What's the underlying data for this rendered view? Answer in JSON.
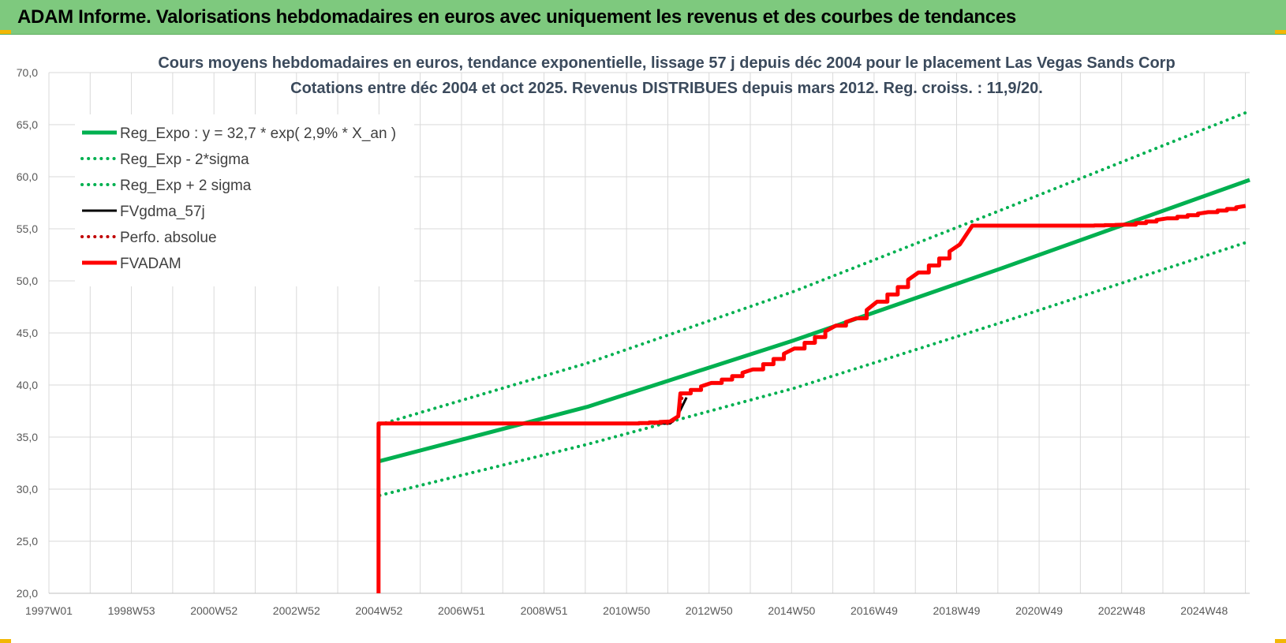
{
  "header": {
    "title": "ADAM Informe. Valorisations hebdomadaires en euros avec uniquement les revenus et des courbes de tendances"
  },
  "colors": {
    "banner": "#7ec97e",
    "green": "#00b050",
    "red": "#ff0000",
    "black": "#000000",
    "grid": "#d9d9d9"
  },
  "chart_data": {
    "type": "line",
    "title_lines": [
      "Cours moyens hebdomadaires en euros, tendance exponentielle, lissage 57 j depuis déc 2004 pour le placement Las Vegas Sands Corp",
      "Cotations entre déc 2004 et oct 2025. Revenus DISTRIBUES depuis mars 2012. Reg. croiss. : 11,9/20."
    ],
    "x_ticks": [
      "1997W01",
      "1998W53",
      "2000W52",
      "2002W52",
      "2004W52",
      "2006W51",
      "2008W51",
      "2010W50",
      "2012W50",
      "2014W50",
      "2016W49",
      "2018W49",
      "2020W49",
      "2022W48",
      "2024W48"
    ],
    "x_range": [
      1997.0,
      2026.0
    ],
    "ylim": [
      20,
      70
    ],
    "y_ticks": [
      "20,0",
      "25,0",
      "30,0",
      "35,0",
      "40,0",
      "45,0",
      "50,0",
      "55,0",
      "60,0",
      "65,0",
      "70,0"
    ],
    "grid": true,
    "legend_position": "top-left",
    "series": [
      {
        "name": "Reg_Expo : y = 32,7 * exp( 2,9% *  X_an )",
        "style": "solid-thick",
        "color": "#00b050",
        "x": [
          2004.99,
          2010.0,
          2015.0,
          2020.0,
          2026.0
        ],
        "y": [
          32.7,
          37.9,
          44.3,
          51.2,
          59.7
        ]
      },
      {
        "name": "Reg_Exp - 2*sigma",
        "style": "dotted",
        "color": "#00b050",
        "x": [
          2004.99,
          2010.0,
          2015.0,
          2020.0,
          2026.0
        ],
        "y": [
          29.4,
          34.3,
          39.7,
          46.0,
          53.8
        ]
      },
      {
        "name": "Reg_Exp + 2 sigma",
        "style": "dotted",
        "color": "#00b050",
        "x": [
          2004.99,
          2010.0,
          2015.0,
          2020.0,
          2026.0
        ],
        "y": [
          36.2,
          42.1,
          49.0,
          56.8,
          66.3
        ]
      },
      {
        "name": "FVgdma_57j",
        "style": "solid",
        "color": "#000000",
        "x": [
          2004.99,
          2012.0,
          2012.15,
          2012.25,
          2012.4
        ],
        "y": [
          36.3,
          36.3,
          36.8,
          37.6,
          38.8
        ]
      },
      {
        "name": "Perfo. absolue",
        "style": "dotted",
        "color": "#c00000",
        "x": [
          2004.99,
          2012.0,
          2012.2,
          2012.3
        ],
        "y": [
          36.3,
          36.3,
          37.0,
          39.0
        ]
      },
      {
        "name": "FVADAM",
        "style": "solid-thick",
        "color": "#ff0000",
        "x": [
          2004.96,
          2004.96,
          2004.99,
          2011.0,
          2012.0,
          2012.2,
          2012.25,
          2013.0,
          2014.0,
          2015.0,
          2016.0,
          2016.5,
          2017.0,
          2018.0,
          2019.0,
          2019.3,
          2020.0,
          2022.0,
          2023.0,
          2024.0,
          2025.0,
          2025.9
        ],
        "y": [
          20.0,
          36.3,
          36.3,
          36.3,
          36.5,
          37.0,
          39.2,
          40.2,
          41.5,
          43.5,
          45.7,
          46.4,
          48.0,
          50.8,
          53.5,
          55.3,
          55.3,
          55.3,
          55.4,
          56.0,
          56.6,
          57.2
        ],
        "stepped": true
      }
    ]
  }
}
